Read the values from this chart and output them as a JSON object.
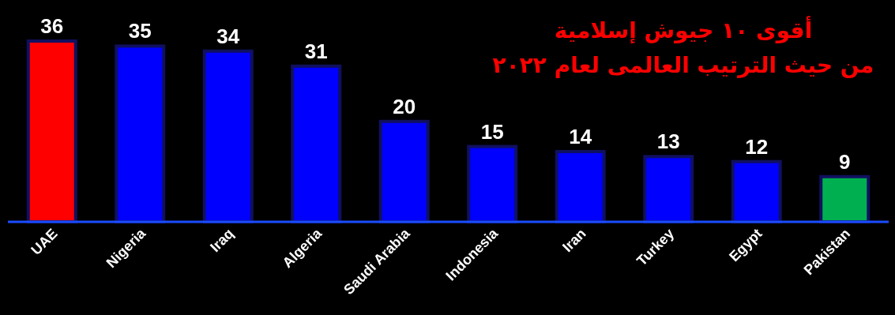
{
  "chart_data": {
    "type": "bar",
    "title": "أقوى ١٠ جيوش إسلامية",
    "subtitle": "من حيث الترتيب العالمى لعام ٢٠٢٢",
    "categories": [
      "UAE",
      "Nigeria",
      "Iraq",
      "Algeria",
      "Saudi Arabia",
      "Indonesia",
      "Iran",
      "Turkey",
      "Egypt",
      "Pakistan"
    ],
    "values": [
      36,
      35,
      34,
      31,
      20,
      15,
      14,
      13,
      12,
      9
    ],
    "colors": [
      "#ff0000",
      "#0000ff",
      "#0000ff",
      "#0000ff",
      "#0000ff",
      "#0000ff",
      "#0000ff",
      "#0000ff",
      "#0000ff",
      "#00b050"
    ],
    "data_labels": true
  }
}
